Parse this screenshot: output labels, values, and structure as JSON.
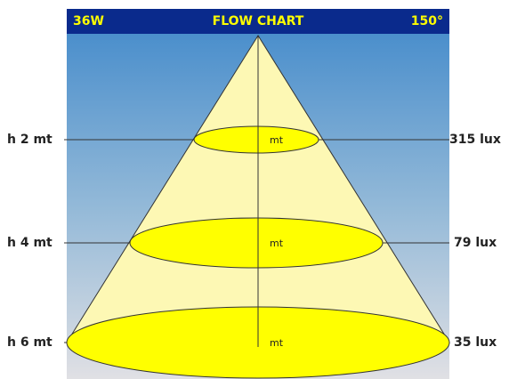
{
  "header": {
    "power": "36W",
    "title": "FLOW CHART",
    "angle": "150°"
  },
  "levels": [
    {
      "height": "h 2 mt",
      "unit": "mt",
      "lux": "315 lux"
    },
    {
      "height": "h 4 mt",
      "unit": "mt",
      "lux": "79 lux"
    },
    {
      "height": "h 6 mt",
      "unit": "mt",
      "lux": "35 lux"
    }
  ]
}
